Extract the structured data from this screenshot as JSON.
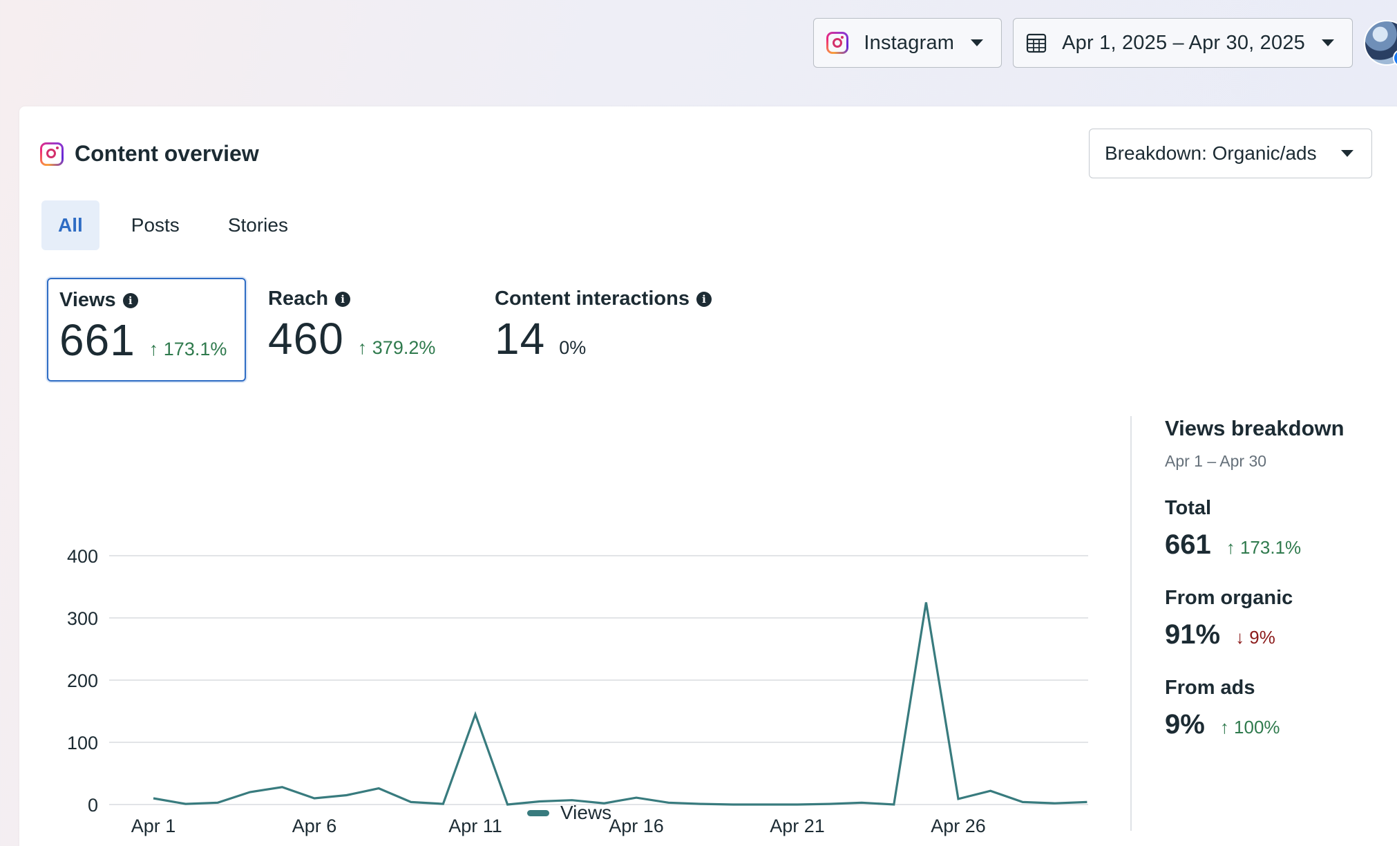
{
  "topbar": {
    "platform_label": "Instagram",
    "date_range_label": "Apr 1, 2025 – Apr 30, 2025",
    "platform_icon": "instagram-icon",
    "calendar_icon": "calendar-icon",
    "avatar_badge": "f"
  },
  "card": {
    "title": "Content overview",
    "breakdown_label": "Breakdown: Organic/ads",
    "tabs": [
      {
        "label": "All",
        "active": true
      },
      {
        "label": "Posts",
        "active": false
      },
      {
        "label": "Stories",
        "active": false
      }
    ]
  },
  "metrics": [
    {
      "label": "Views",
      "value": "661",
      "delta": "↑ 173.1%",
      "selected": true
    },
    {
      "label": "Reach",
      "value": "460",
      "delta": "↑ 379.2%",
      "selected": false
    },
    {
      "label": "Content interactions",
      "value": "14",
      "delta": "0%",
      "selected": false
    }
  ],
  "info_glyph": "i",
  "chart_data": {
    "type": "line",
    "title": "",
    "xlabel": "",
    "ylabel": "",
    "ylim": [
      0,
      400
    ],
    "yticks": [
      "400",
      "300",
      "200",
      "100",
      "0"
    ],
    "xticks": [
      "Apr 1",
      "Apr 6",
      "Apr 11",
      "Apr 16",
      "Apr 21",
      "Apr 26"
    ],
    "x": [
      "Apr 1",
      "Apr 2",
      "Apr 3",
      "Apr 4",
      "Apr 5",
      "Apr 6",
      "Apr 7",
      "Apr 8",
      "Apr 9",
      "Apr 10",
      "Apr 11",
      "Apr 12",
      "Apr 13",
      "Apr 14",
      "Apr 15",
      "Apr 16",
      "Apr 17",
      "Apr 18",
      "Apr 19",
      "Apr 20",
      "Apr 21",
      "Apr 22",
      "Apr 23",
      "Apr 24",
      "Apr 25",
      "Apr 26",
      "Apr 27",
      "Apr 28",
      "Apr 29",
      "Apr 30"
    ],
    "series": [
      {
        "name": "Views",
        "color": "#387b7e",
        "values": [
          10,
          1,
          3,
          20,
          28,
          10,
          15,
          26,
          4,
          1,
          145,
          0,
          5,
          7,
          2,
          11,
          3,
          1,
          0,
          0,
          0,
          1,
          3,
          0,
          325,
          9,
          22,
          4,
          2,
          4
        ]
      }
    ],
    "grid": true,
    "legend": "bottom-center"
  },
  "breakdown": {
    "title": "Views breakdown",
    "range": "Apr 1 – Apr 30",
    "items": [
      {
        "label": "Total",
        "value": "661",
        "delta": "↑ 173.1%",
        "direction": "up"
      },
      {
        "label": "From organic",
        "value": "91%",
        "delta": "↓ 9%",
        "direction": "down"
      },
      {
        "label": "From ads",
        "value": "9%",
        "delta": "↑ 100%",
        "direction": "up"
      }
    ]
  }
}
